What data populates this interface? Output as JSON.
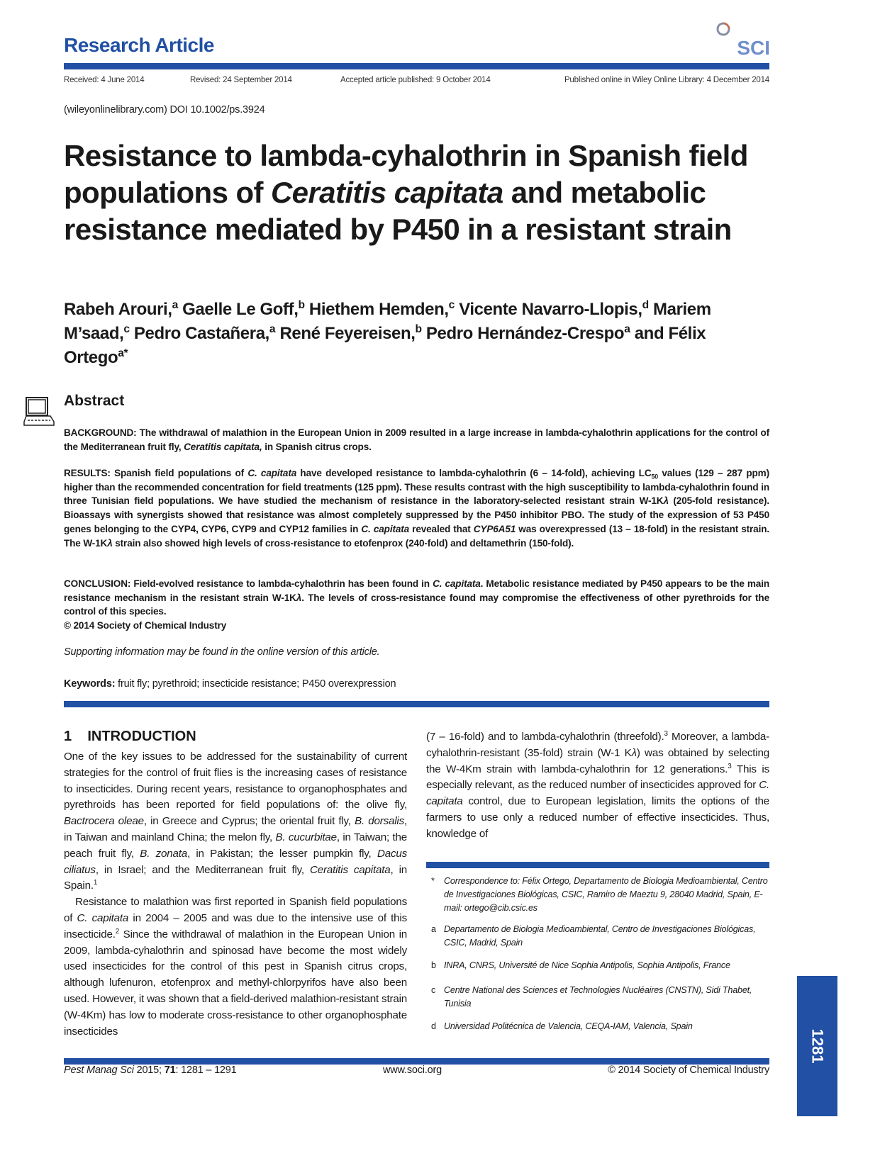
{
  "header": {
    "section": "Research Article",
    "logo_text": "SCI",
    "colors": {
      "brand": "#2150a4",
      "logo_light": "#6f8fca"
    },
    "dates": [
      "Received: 4 June 2014",
      "Revised: 24 September 2014",
      "Accepted article published: 9 October 2014",
      "Published online in Wiley Online Library: 4 December 2014"
    ],
    "doi": "(wileyonlinelibrary.com) DOI 10.1002/ps.3924"
  },
  "title": [
    "Resistance to lambda-cyhalothrin in Spanish ",
    "field populations of ",
    {
      "i": "Ceratitis capitata"
    },
    " and metabolic resistance mediated by P450 in a resistant strain"
  ],
  "authors": [
    "Rabeh Arouri,",
    {
      "sup": "a"
    },
    " Gaelle Le Goff,",
    {
      "sup": "b"
    },
    " Hiethem Hemden,",
    {
      "sup": "c"
    },
    " Vicente Navarro-Llopis,",
    {
      "sup": "d"
    },
    " Mariem M’saad,",
    {
      "sup": "c"
    },
    " Pedro Castañera,",
    {
      "sup": "a"
    },
    " René Feyereisen,",
    {
      "sup": "b"
    },
    " Pedro Hernández-Crespo",
    {
      "sup": "a"
    },
    " and Félix Ortego",
    {
      "sup": "a*"
    }
  ],
  "abstract": {
    "heading": "Abstract",
    "icon": "computer-icon",
    "background": [
      "BACKGROUND: The withdrawal of malathion in the European Union in 2009 resulted in a large increase in lambda-cyhalothrin applications for the control of the Mediterranean fruit fly, ",
      {
        "i": "Ceratitis capitata,"
      },
      " in Spanish citrus crops."
    ],
    "results": [
      "RESULTS: Spanish field populations of ",
      {
        "i": "C. capitata"
      },
      " have developed resistance to lambda-cyhalothrin (6 – 14-fold), achieving LC",
      {
        "sub": "50"
      },
      " values (129 – 287 ppm) higher than the recommended concentration for field treatments (125 ppm). These results contrast with the high susceptibility to lambda-cyhalothrin found in three Tunisian field populations. We have studied the mechanism of resistance in the laboratory-selected resistant strain W-1K",
      {
        "i": "λ"
      },
      " (205-fold resistance). Bioassays with synergists showed that resistance was almost completely suppressed by the P450 inhibitor PBO. The study of the expression of 53 P450 genes belonging to the CYP4, CYP6, CYP9 and CYP12 families in ",
      {
        "i": "C. capitata"
      },
      " revealed that ",
      {
        "i": "CYP6A51"
      },
      " was overexpressed (13 – 18-fold) in the resistant strain. The W-1K",
      {
        "i": "λ"
      },
      " strain also showed high levels of cross-resistance to etofenprox (240-fold) and deltamethrin (150-fold)."
    ],
    "conclusion": [
      "CONCLUSION: Field-evolved resistance to lambda-cyhalothrin has been found in ",
      {
        "i": "C. capitata"
      },
      ". Metabolic resistance mediated by P450 appears to be the main resistance mechanism in the resistant strain W-1K",
      {
        "i": "λ"
      },
      ". The levels of cross-resistance found may compromise the effectiveness of other pyrethroids for the control of this species."
    ],
    "copyright": "© 2014 Society of Chemical Industry"
  },
  "supporting": "Supporting information may be found in the online version of this article.",
  "keywords": [
    {
      "b": "Keywords:"
    },
    " fruit fly; pyrethroid; insecticide resistance; P450 overexpression"
  ],
  "intro": {
    "heading": "1    INTRODUCTION",
    "left": [
      [
        "One of the key issues to be addressed for the sustainability of current strategies for the control of fruit flies is the increasing cases of resistance to insecticides. During recent years, resistance to organophosphates and pyrethroids has been reported for field populations of: the olive fly, ",
        {
          "i": "Bactrocera oleae"
        },
        ", in Greece and Cyprus; the oriental fruit fly, ",
        {
          "i": "B. dorsalis"
        },
        ", in Taiwan and mainland China; the melon fly, ",
        {
          "i": "B. cucurbitae"
        },
        ", in Taiwan; the peach fruit fly, ",
        {
          "i": "B. zonata"
        },
        ", in Pakistan; the lesser pumpkin fly, ",
        {
          "i": "Dacus ciliatus"
        },
        ", in Israel; and the Mediterranean fruit fly, ",
        {
          "i": "Ceratitis capitata"
        },
        ", in Spain.",
        {
          "sup": "1"
        }
      ],
      [
        "Resistance to malathion was first reported in Spanish field populations of ",
        {
          "i": "C. capitata"
        },
        " in 2004 – 2005 and was due to the intensive use of this insecticide.",
        {
          "sup": "2"
        },
        " Since the withdrawal of malathion in the European Union in 2009, lambda-cyhalothrin and spinosad have become the most widely used insecticides for the control of this pest in Spanish citrus crops, although lufenuron, etofenprox and methyl-chlorpyrifos have also been used. However, it was shown that a field-derived malathion-resistant strain (W-4Km) has low to moderate cross-resistance to other organophosphate insecticides"
      ]
    ],
    "right": [
      "(7 – 16-fold) and to lambda-cyhalothrin (threefold).",
      {
        "sup": "3"
      },
      " Moreover, a lambda-cyhalothrin-resistant (35-fold) strain (W-1 K",
      {
        "i": "λ"
      },
      ") was obtained by selecting the W-4Km strain with lambda-cyhalothrin for 12 generations.",
      {
        "sup": "3"
      },
      " This is especially relevant, as the reduced number of insecticides approved for ",
      {
        "i": "C. capitata"
      },
      " control, due to European legislation, limits the options of the farmers to use only a reduced number of effective insecticides. Thus, knowledge of"
    ]
  },
  "footnotes": [
    {
      "mark": "*",
      "text": "Correspondence to: Félix Ortego, Departamento de Biologia Medioambiental, Centro de Investigaciones Biológicas, CSIC, Ramiro de Maeztu 9, 28040 Madrid, Spain, E-mail: ortego@cib.csic.es"
    },
    {
      "mark": "a",
      "text": "Departamento de Biologia Medioambiental, Centro de Investigaciones Biológicas, CSIC, Madrid, Spain"
    },
    {
      "mark": "b",
      "text": "INRA, CNRS, Université de Nice Sophia Antipolis, Sophia Antipolis, France"
    },
    {
      "mark": "c",
      "text": "Centre National des Sciences et Technologies Nucléaires (CNSTN), Sidi Thabet, Tunisia"
    },
    {
      "mark": "d",
      "text": "Universidad Politécnica de Valencia, CEQA-IAM, Valencia, Spain"
    }
  ],
  "footer": {
    "journal": [
      {
        "i": "Pest Manag Sci"
      },
      " 2015; ",
      {
        "b": "71"
      },
      ": 1281 – 1291"
    ],
    "url": "www.soci.org",
    "copyright": "© 2014 Society of Chemical Industry",
    "page_number": "1281"
  }
}
